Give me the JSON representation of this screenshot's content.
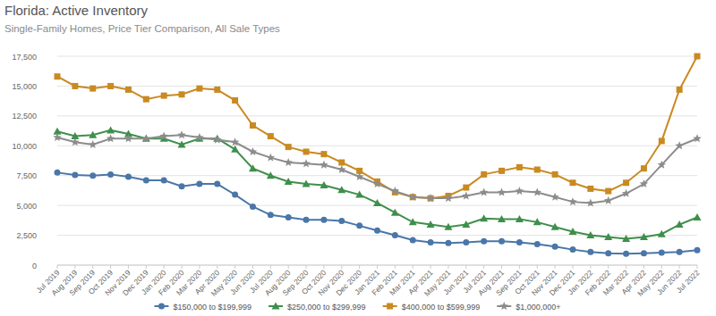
{
  "chart_data": {
    "type": "line",
    "title": "Florida: Active Inventory",
    "subtitle": "Single-Family Homes, Price Tier Comparison, All Sale Types",
    "categories": [
      "Jul 2019",
      "Aug 2019",
      "Sep 2019",
      "Oct 2019",
      "Nov 2019",
      "Dec 2019",
      "Jan 2020",
      "Feb 2020",
      "Mar 2020",
      "Apr 2020",
      "May 2020",
      "Jun 2020",
      "Jul 2020",
      "Aug 2020",
      "Sep 2020",
      "Oct 2020",
      "Nov 2020",
      "Dec 2020",
      "Jan 2021",
      "Feb 2021",
      "Mar 2021",
      "Apr 2021",
      "May 2021",
      "Jun 2021",
      "Jul 2021",
      "Aug 2021",
      "Sep 2021",
      "Oct 2021",
      "Nov 2021",
      "Dec 2021",
      "Jan 2022",
      "Feb 2022",
      "Mar 2022",
      "Apr 2022",
      "May 2022",
      "Jun 2022",
      "Jul 2022"
    ],
    "series": [
      {
        "name": "$150,000 to $199,999",
        "color": "#4a76a8",
        "marker": "circle",
        "values": [
          7750,
          7550,
          7500,
          7600,
          7400,
          7100,
          7100,
          6600,
          6800,
          6800,
          5900,
          4900,
          4200,
          4000,
          3800,
          3800,
          3700,
          3300,
          2900,
          2500,
          2100,
          1900,
          1850,
          1900,
          2000,
          2000,
          1900,
          1750,
          1550,
          1300,
          1100,
          1000,
          950,
          1000,
          1050,
          1100,
          1250
        ]
      },
      {
        "name": "$250,000 to $299,999",
        "color": "#3f8f4c",
        "marker": "triangle",
        "values": [
          11200,
          10800,
          10900,
          11300,
          11000,
          10600,
          10600,
          10100,
          10600,
          10600,
          9700,
          8100,
          7500,
          7000,
          6800,
          6700,
          6300,
          5900,
          5200,
          4400,
          3600,
          3400,
          3200,
          3400,
          3900,
          3850,
          3850,
          3600,
          3200,
          2800,
          2500,
          2350,
          2200,
          2350,
          2600,
          3400,
          4000
        ]
      },
      {
        "name": "$400,000 to $599,999",
        "color": "#c98a21",
        "marker": "square",
        "values": [
          15800,
          15000,
          14800,
          15000,
          14700,
          13900,
          14200,
          14300,
          14800,
          14700,
          13800,
          11700,
          10800,
          9900,
          9500,
          9300,
          8600,
          7900,
          7000,
          6100,
          5700,
          5600,
          5800,
          6500,
          7600,
          7900,
          8200,
          8000,
          7600,
          6900,
          6400,
          6200,
          6900,
          8100,
          10400,
          14700,
          17500
        ]
      },
      {
        "name": "$1,000,000+",
        "color": "#8c8c8c",
        "marker": "star",
        "values": [
          10700,
          10300,
          10100,
          10600,
          10600,
          10600,
          10800,
          10900,
          10700,
          10500,
          10300,
          9500,
          9000,
          8600,
          8500,
          8400,
          8000,
          7400,
          6800,
          6200,
          5700,
          5600,
          5600,
          5800,
          6100,
          6100,
          6200,
          6100,
          5700,
          5300,
          5200,
          5400,
          6000,
          6800,
          8400,
          10000,
          10600
        ]
      }
    ],
    "ylim": [
      0,
      17500
    ],
    "yticks": [
      0,
      {
        "value": 2500,
        "label": "2,500"
      },
      {
        "value": 5000,
        "label": "5,000"
      },
      {
        "value": 7500,
        "label": "7,500"
      },
      {
        "value": 10000,
        "label": "10,000"
      },
      {
        "value": 12500,
        "label": "12,500"
      },
      {
        "value": 15000,
        "label": "15,000"
      },
      {
        "value": 17500,
        "label": "17,500"
      }
    ],
    "grid": true,
    "legend": "bottom"
  }
}
